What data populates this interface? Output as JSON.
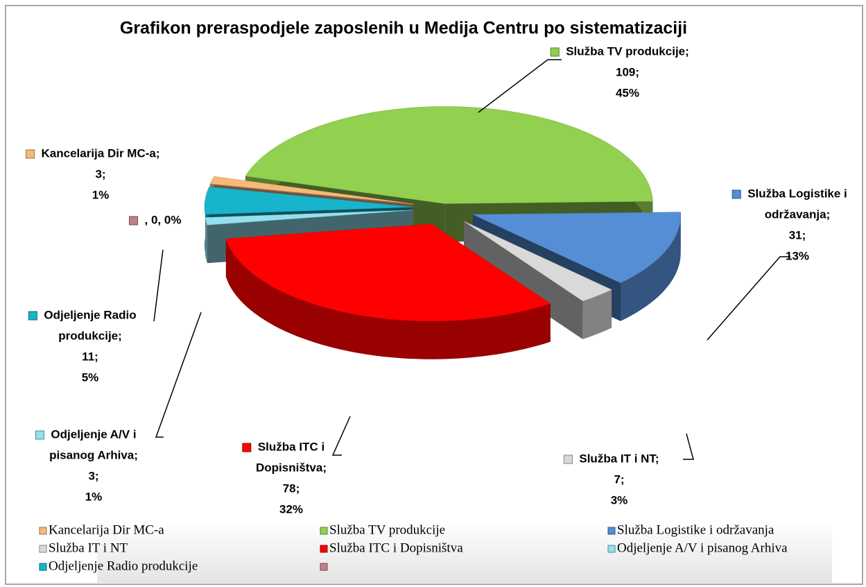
{
  "chart_data": {
    "type": "pie3d",
    "title": "Grafikon preraspodjele zaposlenih u Medija Centru po sistematizaciji",
    "categories": [
      "Kancelarija Dir MC-a",
      "Služba TV produkcije",
      "Služba Logistike i održavanja",
      "Služba  IT i NT",
      "Služba ITC i Dopisništva",
      "Odjeljenje A/V i pisanog Arhiva",
      "Odjeljenje Radio produkcije",
      null
    ],
    "values": [
      3,
      109,
      31,
      7,
      78,
      3,
      11,
      0
    ],
    "percents": [
      1,
      45,
      13,
      3,
      32,
      1,
      5,
      0
    ],
    "data_labels": [
      [
        "Kancelarija Dir MC-a;",
        "3;",
        "1%"
      ],
      [
        "Služba TV produkcije;",
        "109;",
        "45%"
      ],
      [
        "Služba Logistike i",
        "održavanja;",
        "31;",
        "13%"
      ],
      [
        "Služba  IT i NT;",
        "7;",
        "3%"
      ],
      [
        "Služba ITC i",
        "Dopisništva;",
        "78;",
        "32%"
      ],
      [
        "Odjeljenje A/V i",
        "pisanog Arhiva;",
        "3;",
        "1%"
      ],
      [
        "Odjeljenje Radio",
        "produkcije;",
        "11;",
        "5%"
      ],
      [
        ", 0, 0%"
      ]
    ],
    "colors": [
      "#f6b97a",
      "#92d050",
      "#558ed5",
      "#d9d9d9",
      "#ff0000",
      "#93e0f0",
      "#17b4cc",
      "#c0808a"
    ],
    "legend": "bottom"
  }
}
